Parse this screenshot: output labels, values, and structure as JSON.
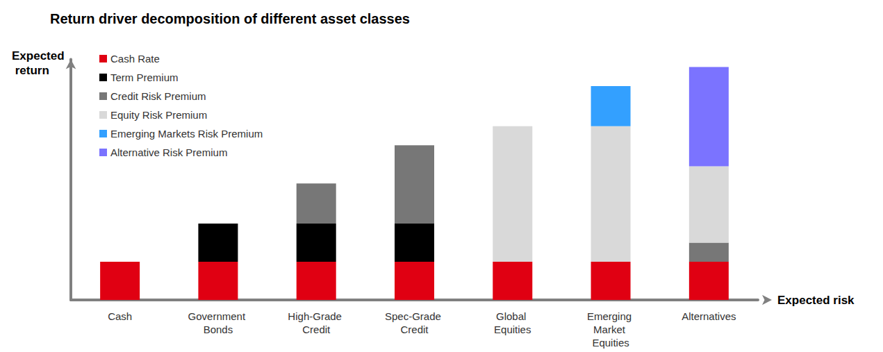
{
  "chart_data": {
    "type": "bar",
    "title": "Return driver decomposition of different asset classes",
    "y_label": "Expected return",
    "x_label": "Expected risk",
    "categories": [
      "Cash",
      "Government Bonds",
      "High-Grade Credit",
      "Spec-Grade Credit",
      "Global Equities",
      "Emerging Market Equities",
      "Alternatives"
    ],
    "series": [
      {
        "name": "Cash Rate",
        "color": "#e00012",
        "values": [
          1,
          1,
          1,
          1,
          1,
          1,
          1
        ]
      },
      {
        "name": "Term Premium",
        "color": "#000000",
        "values": [
          null,
          1,
          1,
          1,
          null,
          null,
          null
        ]
      },
      {
        "name": "Credit Risk Premium",
        "color": "#777777",
        "values": [
          null,
          null,
          1.05,
          2.05,
          null,
          null,
          0.5
        ]
      },
      {
        "name": "Equity Risk Premium",
        "color": "#d9d9d9",
        "values": [
          null,
          null,
          null,
          null,
          3.55,
          3.55,
          2
        ]
      },
      {
        "name": "Emerging Markets Risk Premium",
        "color": "#33a0ff",
        "values": [
          null,
          null,
          null,
          null,
          null,
          1.05,
          null
        ]
      },
      {
        "name": "Alternative Risk Premium",
        "color": "#7b73ff",
        "values": [
          null,
          null,
          null,
          null,
          null,
          null,
          2.6
        ]
      }
    ],
    "ylim": [
      0,
      6.3
    ],
    "stacked": true,
    "grid": false,
    "legend": "top-left",
    "tick_labels": "x"
  }
}
